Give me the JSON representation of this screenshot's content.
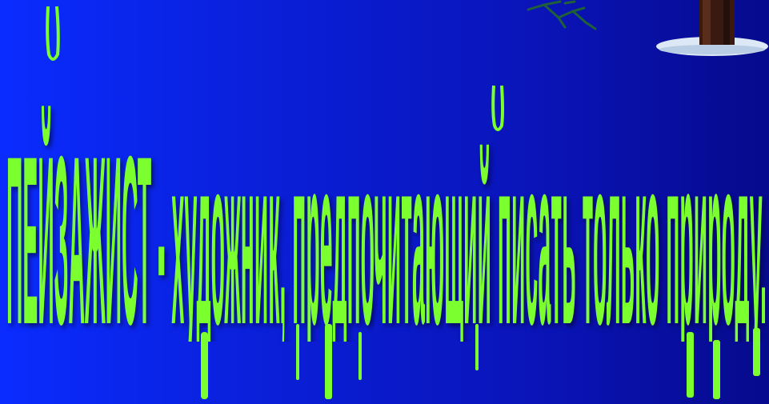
{
  "slide": {
    "text": "ПЕЙЗАЖИСТ - художник, предпочитающий писать только природу."
  }
}
